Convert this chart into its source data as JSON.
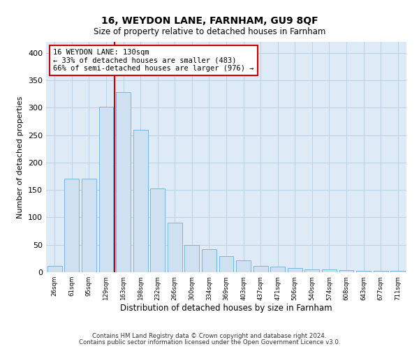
{
  "title1": "16, WEYDON LANE, FARNHAM, GU9 8QF",
  "title2": "Size of property relative to detached houses in Farnham",
  "xlabel": "Distribution of detached houses by size in Farnham",
  "ylabel": "Number of detached properties",
  "categories": [
    "26sqm",
    "61sqm",
    "95sqm",
    "129sqm",
    "163sqm",
    "198sqm",
    "232sqm",
    "266sqm",
    "300sqm",
    "334sqm",
    "369sqm",
    "403sqm",
    "437sqm",
    "471sqm",
    "506sqm",
    "540sqm",
    "574sqm",
    "608sqm",
    "643sqm",
    "677sqm",
    "711sqm"
  ],
  "values": [
    12,
    170,
    170,
    302,
    328,
    260,
    153,
    90,
    50,
    42,
    29,
    22,
    11,
    10,
    8,
    5,
    5,
    4,
    2,
    2,
    3
  ],
  "bar_color": "#cfe0f0",
  "bar_edge_color": "#6baed6",
  "annotation_line_color": "#cc0000",
  "annotation_text": "16 WEYDON LANE: 130sqm\n← 33% of detached houses are smaller (483)\n66% of semi-detached houses are larger (976) →",
  "annotation_box_facecolor": "white",
  "annotation_box_edgecolor": "#cc0000",
  "ylim": [
    0,
    420
  ],
  "yticks": [
    0,
    50,
    100,
    150,
    200,
    250,
    300,
    350,
    400
  ],
  "grid_color": "#b8d3e8",
  "background_color": "#deeaf5",
  "footer_line1": "Contains HM Land Registry data © Crown copyright and database right 2024.",
  "footer_line2": "Contains public sector information licensed under the Open Government Licence v3.0."
}
